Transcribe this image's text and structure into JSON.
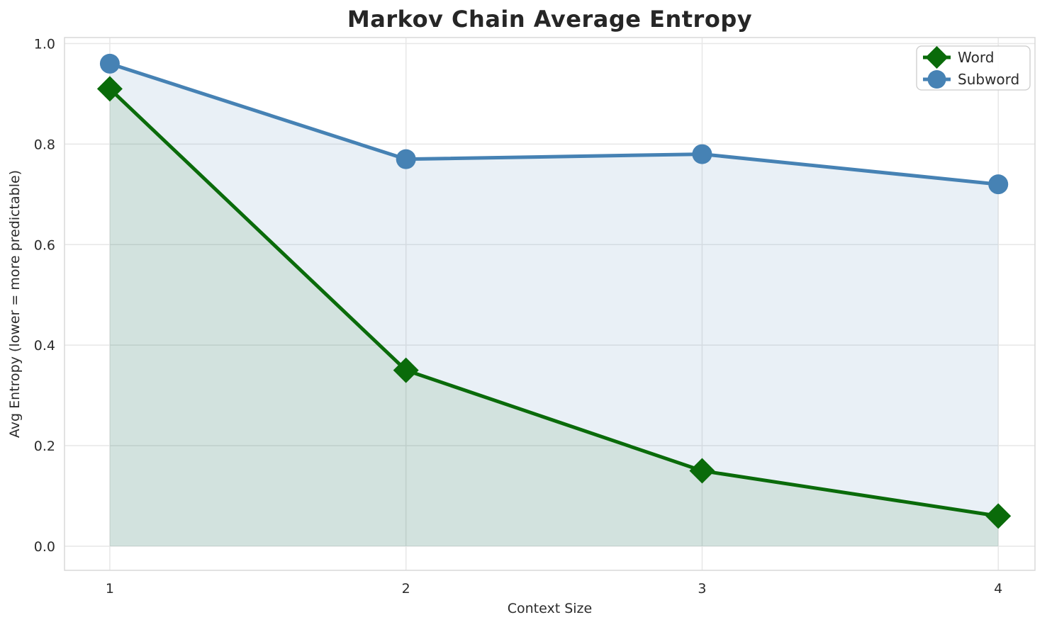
{
  "chart_data": {
    "type": "line",
    "title": "Markov Chain Average Entropy",
    "xlabel": "Context Size",
    "ylabel": "Avg Entropy (lower = more predictable)",
    "x": [
      1,
      2,
      3,
      4
    ],
    "series": [
      {
        "name": "Word",
        "values": [
          0.91,
          0.35,
          0.15,
          0.06
        ],
        "color": "#0a6b0a",
        "marker": "diamond",
        "fill_to_zero": true,
        "fill_color": "rgba(10,107,10,0.10)"
      },
      {
        "name": "Subword",
        "values": [
          0.96,
          0.77,
          0.78,
          0.72
        ],
        "color": "#4682b4",
        "marker": "circle",
        "fill_to_zero": true,
        "fill_color": "rgba(70,130,180,0.12)"
      }
    ],
    "xticks": [
      {
        "label": "1",
        "value": 1
      },
      {
        "label": "2",
        "value": 2
      },
      {
        "label": "3",
        "value": 3
      },
      {
        "label": "4",
        "value": 4
      }
    ],
    "yticks": [
      {
        "label": "0.0",
        "value": 0.0
      },
      {
        "label": "0.2",
        "value": 0.2
      },
      {
        "label": "0.4",
        "value": 0.4
      },
      {
        "label": "0.6",
        "value": 0.6
      },
      {
        "label": "0.8",
        "value": 0.8
      },
      {
        "label": "1.0",
        "value": 1.0
      }
    ],
    "xlim": [
      0.847,
      4.124
    ],
    "ylim": [
      -0.048,
      1.012
    ],
    "grid": true,
    "grid_color": "#e7e7e7",
    "border_color": "#d9d9d9",
    "tick_label_color": "#2b2b2b",
    "legend": {
      "position": "top-right",
      "entries": [
        "Word",
        "Subword"
      ],
      "background": "rgba(255,255,255,0.9)",
      "border_color": "#cccccc"
    }
  }
}
